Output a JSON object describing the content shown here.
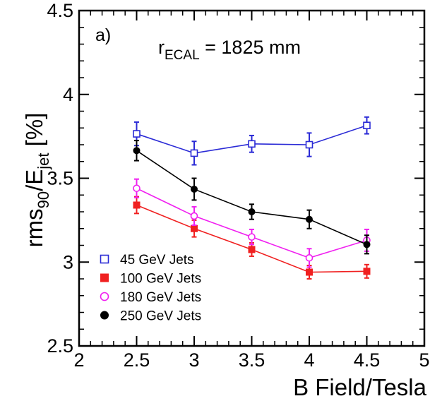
{
  "chart_data": {
    "type": "line",
    "panel_label": "a)",
    "annotation": {
      "prefix": "r",
      "subscript": "ECAL",
      "suffix": " = 1825 mm"
    },
    "xlabel": "B Field/Tesla",
    "ylabel": {
      "part1": "rms",
      "sub1": "90",
      "part2": "/E",
      "sub2": "jet",
      "part3": " [%]"
    },
    "xlim": [
      2,
      5
    ],
    "ylim": [
      2.5,
      4.5
    ],
    "x_ticks": [
      2,
      2.5,
      3,
      3.5,
      4,
      4.5,
      5
    ],
    "x_tick_labels": [
      "2",
      "2.5",
      "3",
      "3.5",
      "4",
      "4.5",
      "5"
    ],
    "y_ticks": [
      2.5,
      3,
      3.5,
      4,
      4.5
    ],
    "y_tick_labels": [
      "2.5",
      "3",
      "3.5",
      "4",
      "4.5"
    ],
    "grid": false,
    "legend_position": "bottom-left",
    "x": [
      2.5,
      3,
      3.5,
      4,
      4.5
    ],
    "series": [
      {
        "name": "45 GeV Jets",
        "color": "#2b2bd6",
        "marker": "open-square",
        "values": [
          3.765,
          3.65,
          3.705,
          3.7,
          3.815
        ],
        "errors": [
          0.07,
          0.07,
          0.05,
          0.07,
          0.05
        ]
      },
      {
        "name": "100 GeV Jets",
        "color": "#f02020",
        "marker": "filled-square",
        "values": [
          3.34,
          3.2,
          3.075,
          2.94,
          2.945
        ],
        "errors": [
          0.05,
          0.05,
          0.04,
          0.04,
          0.04
        ]
      },
      {
        "name": "180 GeV Jets",
        "color": "#f020f0",
        "marker": "open-circle",
        "values": [
          3.44,
          3.275,
          3.15,
          3.025,
          3.13
        ],
        "errors": [
          0.055,
          0.055,
          0.045,
          0.055,
          0.065
        ]
      },
      {
        "name": "250 GeV Jets",
        "color": "#000000",
        "marker": "filled-circle",
        "values": [
          3.665,
          3.435,
          3.3,
          3.255,
          3.105
        ],
        "errors": [
          0.06,
          0.065,
          0.045,
          0.055,
          0.055
        ]
      }
    ]
  }
}
